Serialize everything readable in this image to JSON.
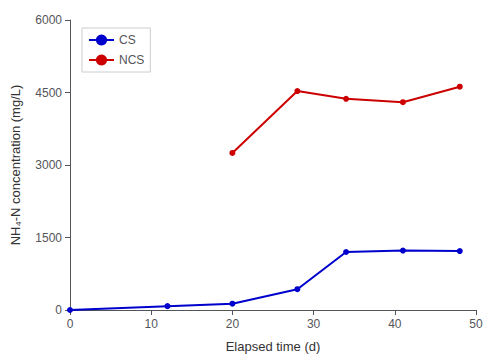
{
  "chart_data": {
    "type": "line",
    "xlabel": "Elapsed time (d)",
    "ylabel": "NH₄-N concentration (mg/L)",
    "xlim": [
      0,
      50
    ],
    "xticks": [
      0,
      10,
      20,
      30,
      40,
      50
    ],
    "ylim": [
      0,
      6000
    ],
    "yticks": [
      0,
      1500,
      3000,
      4500,
      6000
    ],
    "grid": false,
    "legend": "upper left",
    "series": [
      {
        "name": "CS",
        "color": "#0000CC",
        "marker": "circle",
        "x": [
          0,
          12,
          20,
          28,
          34,
          41,
          48
        ],
        "values": [
          0,
          80,
          130,
          430,
          1200,
          1230,
          1220
        ]
      },
      {
        "name": "NCS",
        "color": "#CC0000",
        "marker": "circle",
        "x": [
          20,
          28,
          34,
          41,
          48
        ],
        "values": [
          3250,
          4530,
          4370,
          4300,
          4620
        ]
      }
    ]
  }
}
